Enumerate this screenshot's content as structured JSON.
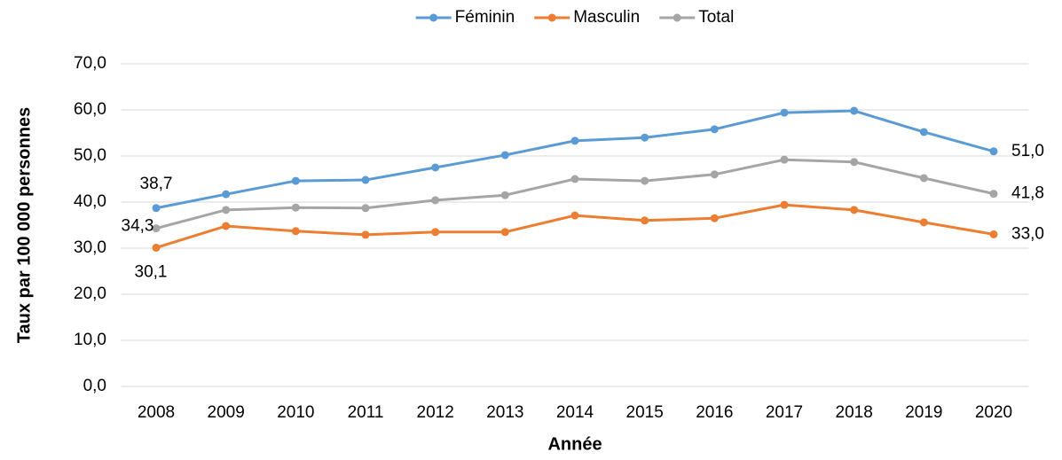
{
  "chart_data": {
    "type": "line",
    "xlabel": "Année",
    "ylabel": "Taux par 100 000 personnes",
    "categories": [
      "2008",
      "2009",
      "2010",
      "2011",
      "2012",
      "2013",
      "2014",
      "2015",
      "2016",
      "2017",
      "2018",
      "2019",
      "2020"
    ],
    "series": [
      {
        "name": "Féminin",
        "color": "#5b9bd5",
        "values": [
          38.7,
          41.7,
          44.6,
          44.8,
          47.5,
          50.2,
          53.3,
          54.0,
          55.8,
          59.4,
          59.8,
          55.2,
          51.0
        ],
        "value_labels": [
          "38,7",
          null,
          null,
          null,
          null,
          null,
          null,
          null,
          null,
          null,
          null,
          null,
          "51,0"
        ]
      },
      {
        "name": "Masculin",
        "color": "#ed7d31",
        "values": [
          30.1,
          34.8,
          33.7,
          32.9,
          33.5,
          33.5,
          37.1,
          36.0,
          36.5,
          39.4,
          38.3,
          35.6,
          33.0
        ],
        "value_labels": [
          "30,1",
          null,
          null,
          null,
          null,
          null,
          null,
          null,
          null,
          null,
          null,
          null,
          "33,0"
        ]
      },
      {
        "name": "Total",
        "color": "#a5a5a5",
        "values": [
          34.3,
          38.3,
          38.8,
          38.7,
          40.4,
          41.5,
          45.0,
          44.6,
          46.0,
          49.2,
          48.7,
          45.2,
          41.8
        ],
        "value_labels": [
          "34,3",
          null,
          null,
          null,
          null,
          null,
          null,
          null,
          null,
          null,
          null,
          null,
          "41,8"
        ]
      }
    ],
    "ylim": [
      0,
      70
    ],
    "yticks": [
      {
        "value": 0,
        "label": "0,0"
      },
      {
        "value": 10,
        "label": "10,0"
      },
      {
        "value": 20,
        "label": "20,0"
      },
      {
        "value": 30,
        "label": "30,0"
      },
      {
        "value": 40,
        "label": "40,0"
      },
      {
        "value": 50,
        "label": "50,0"
      },
      {
        "value": 60,
        "label": "60,0"
      },
      {
        "value": 70,
        "label": "70,0"
      }
    ],
    "grid": true,
    "legend": "top"
  }
}
